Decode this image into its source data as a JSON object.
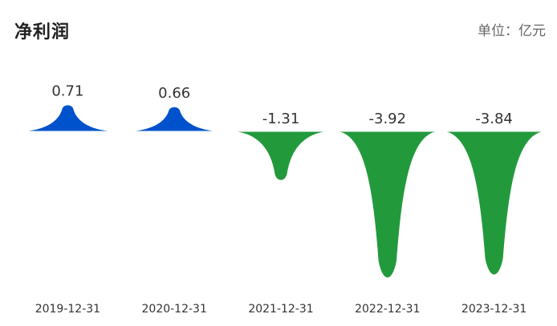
{
  "header": {
    "title": "净利润",
    "unit": "单位：亿元"
  },
  "colors": {
    "positive": "#0052cc",
    "negative": "#229a3c",
    "baseline": "#ffffff"
  },
  "chart_data": {
    "type": "area",
    "title": "净利润",
    "unit": "单位：亿元",
    "categories": [
      "2019-12-31",
      "2020-12-31",
      "2021-12-31",
      "2022-12-31",
      "2023-12-31"
    ],
    "values": [
      0.71,
      0.66,
      -1.31,
      -3.92,
      -3.84
    ],
    "value_labels": [
      "0.71",
      "0.66",
      "-1.31",
      "-3.92",
      "-3.84"
    ],
    "grid": false,
    "legend": "none"
  }
}
